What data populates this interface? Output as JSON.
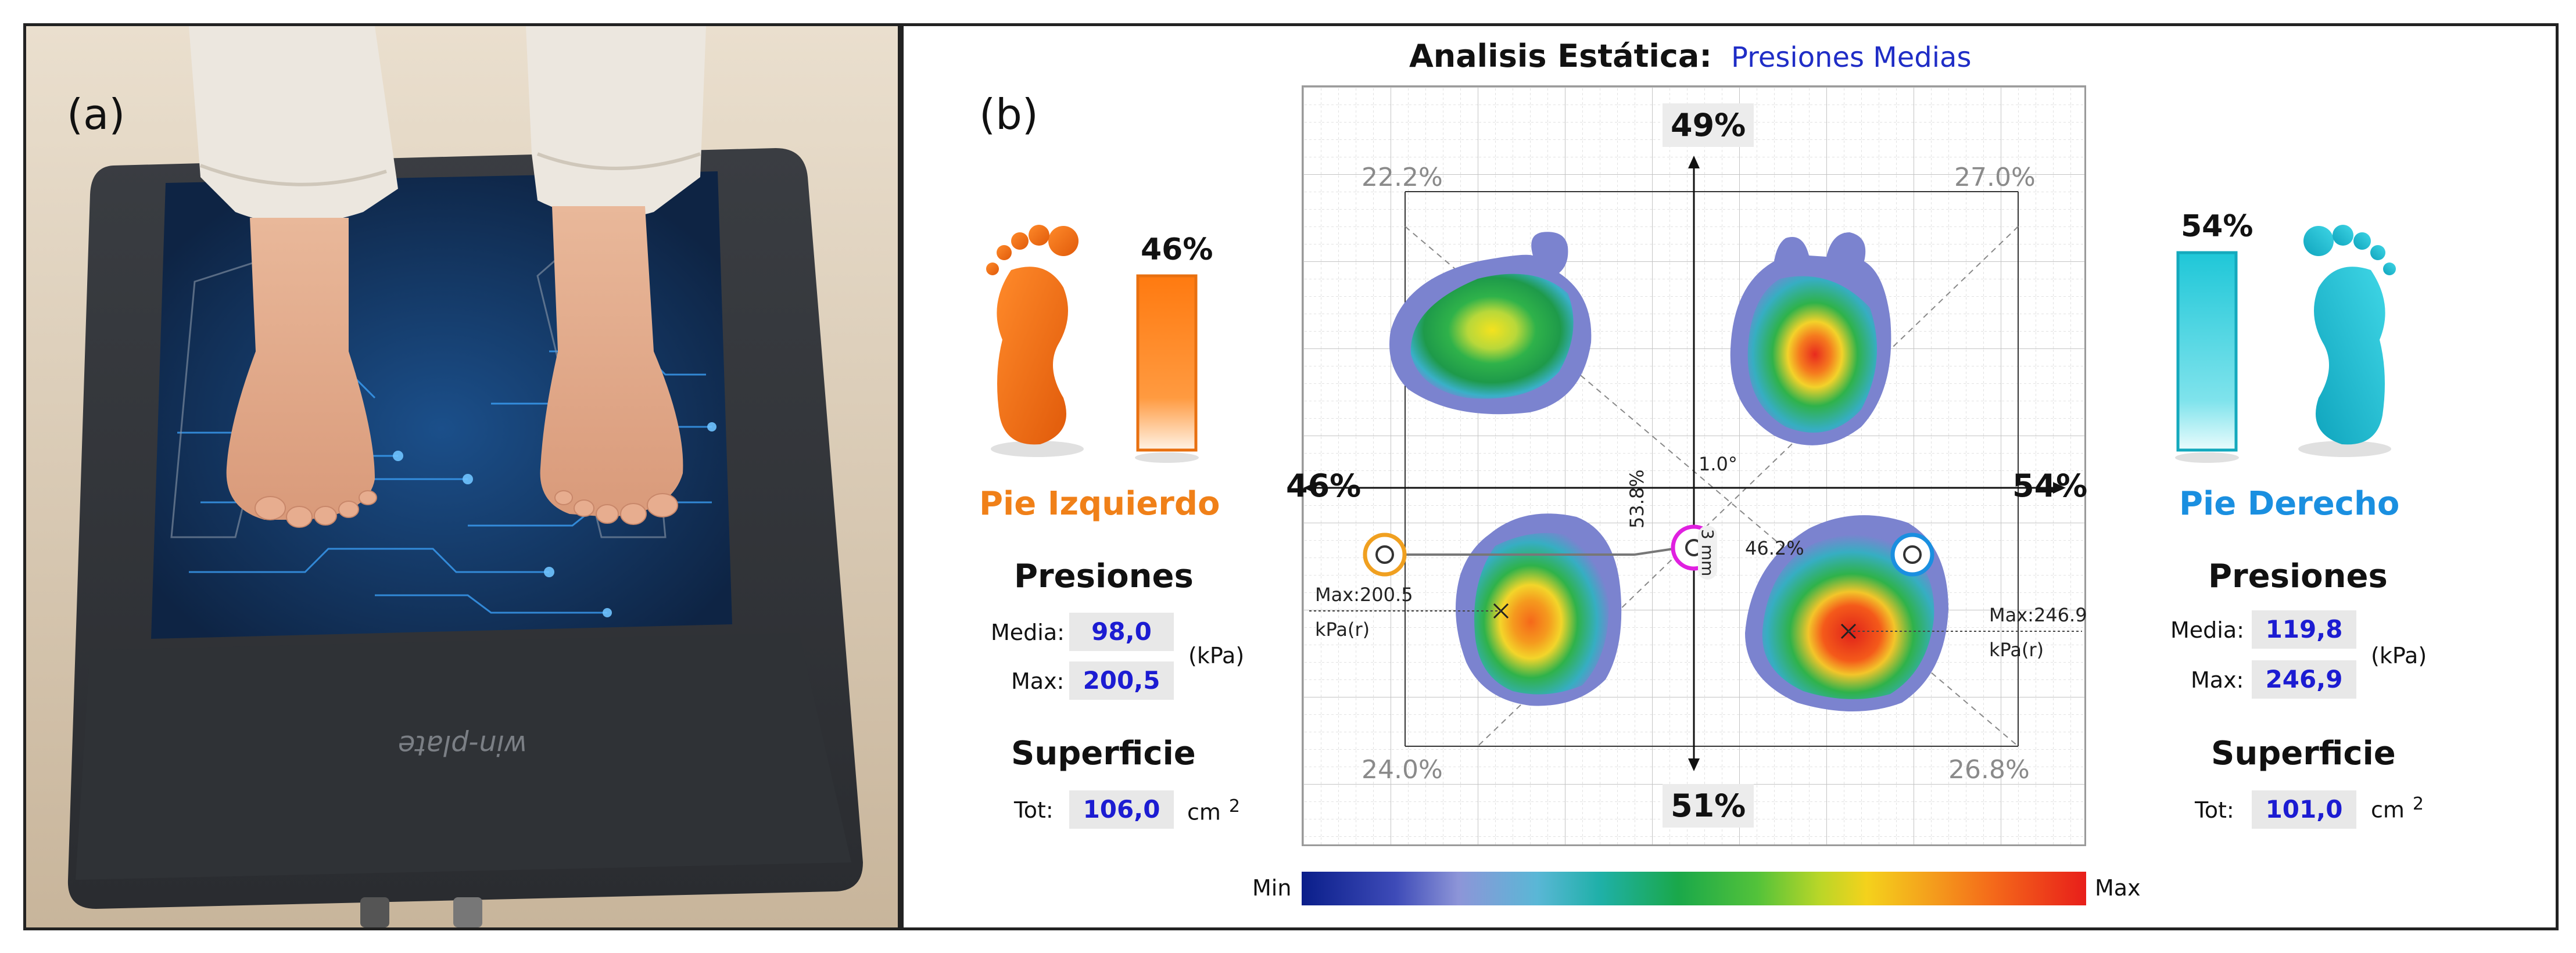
{
  "panels": {
    "a": {
      "label": "(a)",
      "brand_text": "win-plate"
    },
    "b": {
      "label": "(b)"
    }
  },
  "header": {
    "title": "Analisis Estática:",
    "subtitle": "Presiones Medias"
  },
  "left_foot": {
    "percent": "46%",
    "name": "Pie Izquierdo",
    "color": "#f08018",
    "pressures_heading": "Presiones",
    "media_label": "Media:",
    "media_value": "98,0",
    "max_label": "Max:",
    "max_value": "200,5",
    "pressure_unit": "(kPa)",
    "surface_heading": "Superficie",
    "tot_label": "Tot:",
    "tot_value": "106,0",
    "surface_unit": "cm",
    "surface_unit_exp": "2"
  },
  "right_foot": {
    "percent": "54%",
    "name": "Pie Derecho",
    "color": "#1a8fe0",
    "pressures_heading": "Presiones",
    "media_label": "Media:",
    "media_value": "119,8",
    "max_label": "Max:",
    "max_value": "246,9",
    "pressure_unit": "(kPa)",
    "surface_heading": "Superficie",
    "tot_label": "Tot:",
    "tot_value": "101,0",
    "surface_unit": "cm",
    "surface_unit_exp": "2"
  },
  "map": {
    "top_pct": "49%",
    "bottom_pct": "51%",
    "left_pct": "46%",
    "right_pct": "54%",
    "q_top_left": "22.2%",
    "q_top_right": "27.0%",
    "q_bottom_left": "24.0%",
    "q_bottom_right": "26.8%",
    "angle": "1.0°",
    "diag_left": "53.8%",
    "cop_offset": "3 mm",
    "diag_right": "46.2%",
    "max_left_line1": "Max:200.5",
    "max_left_line2": "kPa(r)",
    "max_right_line1": "Max:246.9",
    "max_right_line2": "kPa(r)"
  },
  "colorbar": {
    "min_label": "Min",
    "max_label": "Max"
  },
  "icons": [
    "left-foot-icon",
    "right-foot-icon",
    "cop-left-marker-icon",
    "cop-center-marker-icon",
    "cop-right-marker-icon",
    "max-cross-icon"
  ]
}
